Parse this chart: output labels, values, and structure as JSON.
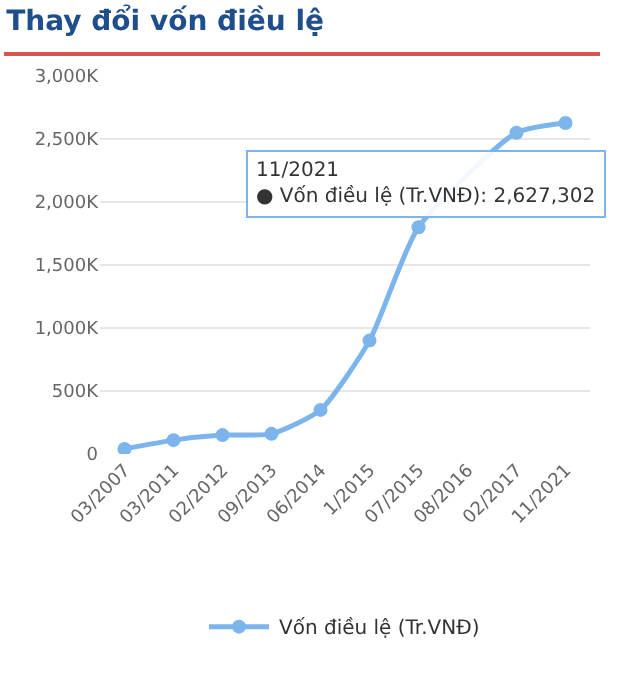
{
  "chart_data": {
    "type": "line",
    "title": "Thay đổi vốn điều lệ",
    "categories": [
      "03/2007",
      "03/2011",
      "02/2012",
      "09/2013",
      "06/2014",
      "1/2015",
      "07/2015",
      "08/2016",
      "02/2017",
      "11/2021"
    ],
    "series": [
      {
        "name": "Vốn điều lệ (Tr.VNĐ)",
        "color": "#7cb5ec",
        "values": [
          40000,
          110000,
          150000,
          160000,
          350000,
          900000,
          1800000,
          null,
          2550000,
          2627302
        ]
      }
    ],
    "ylim": [
      0,
      3000000
    ],
    "yticks": [
      {
        "value": 0,
        "label": "0"
      },
      {
        "value": 500000,
        "label": "500K"
      },
      {
        "value": 1000000,
        "label": "1,000K"
      },
      {
        "value": 1500000,
        "label": "1,500K"
      },
      {
        "value": 2000000,
        "label": "2,000K"
      },
      {
        "value": 2500000,
        "label": "2,500K"
      },
      {
        "value": 3000000,
        "label": "3,000K"
      }
    ],
    "annotations": [
      {
        "text": "11/2021\n● Vốn điều lệ (Tr.VNĐ): 2,627,302",
        "x": "11/2021",
        "y": 2627302
      }
    ],
    "grid": "y",
    "legend": "bottom",
    "marker": "circle",
    "line_style": "solid"
  }
}
